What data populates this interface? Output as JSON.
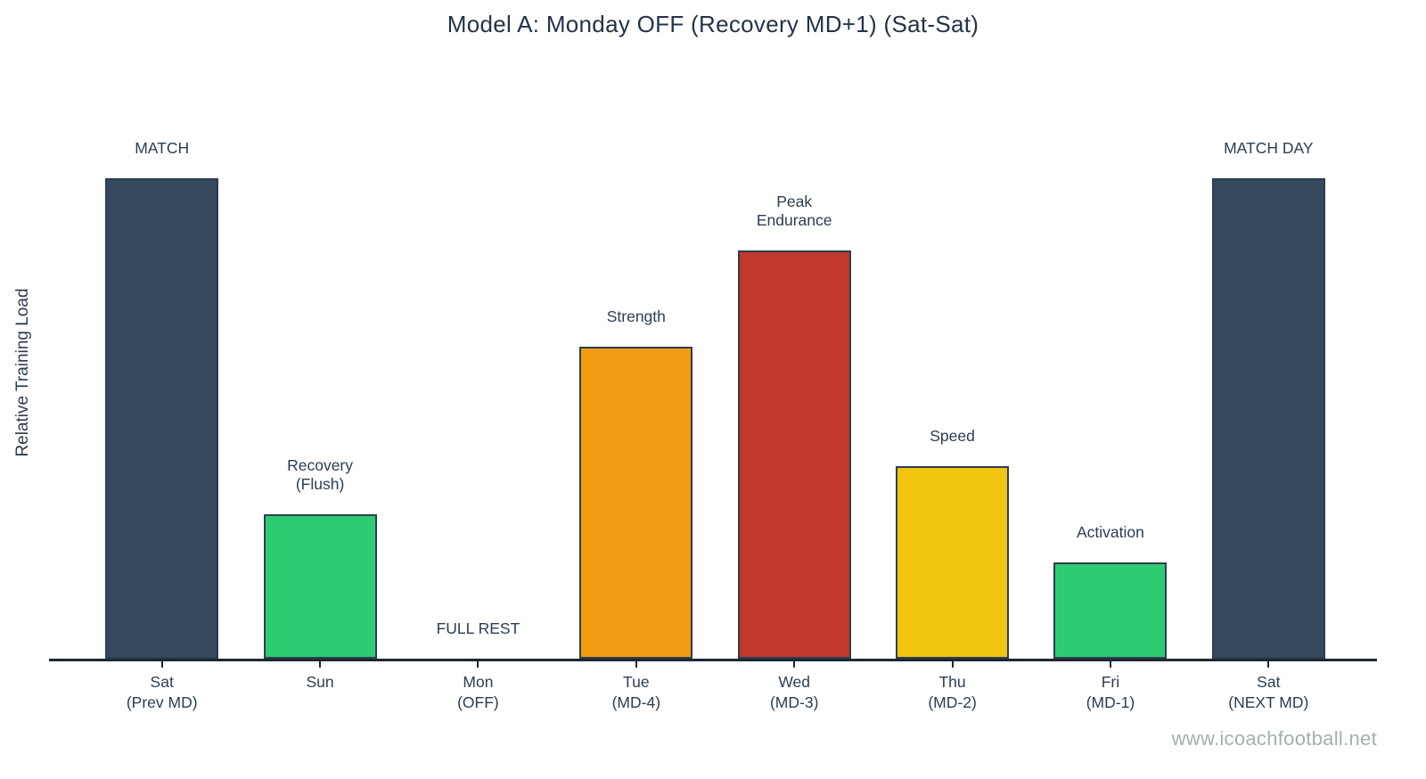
{
  "title": "Model A: Monday OFF (Recovery MD+1) (Sat-Sat)",
  "watermark": "www.icoachfootball.net",
  "colors": {
    "match_navy": "#34495e",
    "recovery_green": "#2ecc71",
    "strength_orange": "#f39c12",
    "endurance_red": "#c0392b",
    "speed_yellow": "#f1c40f",
    "text_navy": "#2c3e50",
    "axis_dark": "#1c2833",
    "watermark_gray": "#a3b1ae"
  },
  "chart_data": {
    "type": "bar",
    "title": "Model A: Monday OFF (Recovery MD+1) (Sat-Sat)",
    "xlabel": "",
    "ylabel": "Relative Training Load",
    "ylim": [
      0,
      111
    ],
    "grid": false,
    "legend": false,
    "y_axis_ticks_visible": false,
    "categories": [
      "Sat (Prev MD)",
      "Sun",
      "Mon (OFF)",
      "Tue (MD-4)",
      "Wed (MD-3)",
      "Thu (MD-2)",
      "Fri (MD-1)",
      "Sat (NEXT MD)"
    ],
    "values": [
      100,
      30,
      0,
      65,
      85,
      40,
      20,
      100
    ],
    "bar_labels": [
      "MATCH",
      "Recovery (Flush)",
      "FULL REST",
      "Strength",
      "Peak Endurance",
      "Speed",
      "Activation",
      "MATCH DAY"
    ],
    "bar_colors": [
      "#34495e",
      "#2ecc71",
      "none",
      "#f39c12",
      "#c0392b",
      "#f1c40f",
      "#2ecc71",
      "#34495e"
    ],
    "bar_edge_color": "#2c3e50",
    "days": [
      {
        "tick_line1": "Sat",
        "tick_line2": "(Prev MD)",
        "annotation": "MATCH",
        "annotation2": "",
        "value": 100,
        "color": "#34495e"
      },
      {
        "tick_line1": "Sun",
        "tick_line2": "",
        "annotation": "Recovery",
        "annotation2": "(Flush)",
        "value": 30,
        "color": "#2ecc71"
      },
      {
        "tick_line1": "Mon",
        "tick_line2": "(OFF)",
        "annotation": "FULL REST",
        "annotation2": "",
        "value": 0,
        "color": "none"
      },
      {
        "tick_line1": "Tue",
        "tick_line2": "(MD-4)",
        "annotation": "Strength",
        "annotation2": "",
        "value": 65,
        "color": "#f39c12"
      },
      {
        "tick_line1": "Wed",
        "tick_line2": "(MD-3)",
        "annotation": "Peak",
        "annotation2": "Endurance",
        "value": 85,
        "color": "#c0392b"
      },
      {
        "tick_line1": "Thu",
        "tick_line2": "(MD-2)",
        "annotation": "Speed",
        "annotation2": "",
        "value": 40,
        "color": "#f1c40f"
      },
      {
        "tick_line1": "Fri",
        "tick_line2": "(MD-1)",
        "annotation": "Activation",
        "annotation2": "",
        "value": 20,
        "color": "#2ecc71"
      },
      {
        "tick_line1": "Sat",
        "tick_line2": "(NEXT MD)",
        "annotation": "MATCH DAY",
        "annotation2": "",
        "value": 100,
        "color": "#34495e"
      }
    ]
  }
}
